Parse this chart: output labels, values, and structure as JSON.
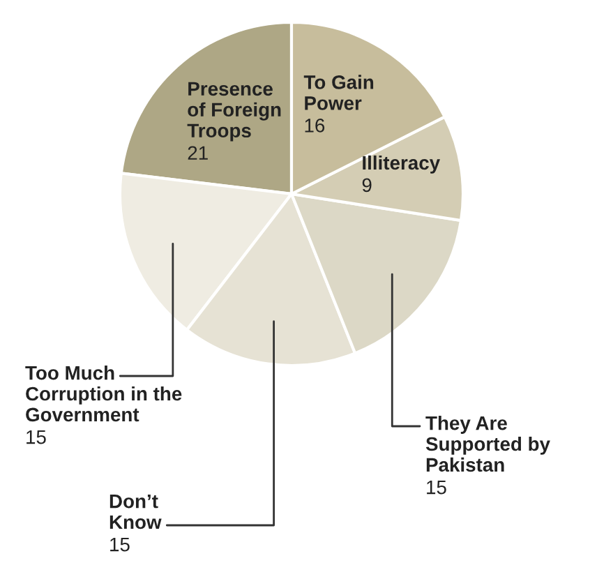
{
  "chart_data": {
    "type": "pie",
    "categories": [
      "Presence of Foreign Troops",
      "Too Much Corruption in the Government",
      "Don’t Know",
      "They Are Supported by Pakistan",
      "Illiteracy",
      "To Gain Power"
    ],
    "values": [
      21,
      15,
      15,
      15,
      9,
      16
    ],
    "colors": [
      "#aea785",
      "#efece2",
      "#e6e2d4",
      "#dcd8c6",
      "#d4cdb4",
      "#c7bd9c"
    ],
    "data_labels": true
  }
}
